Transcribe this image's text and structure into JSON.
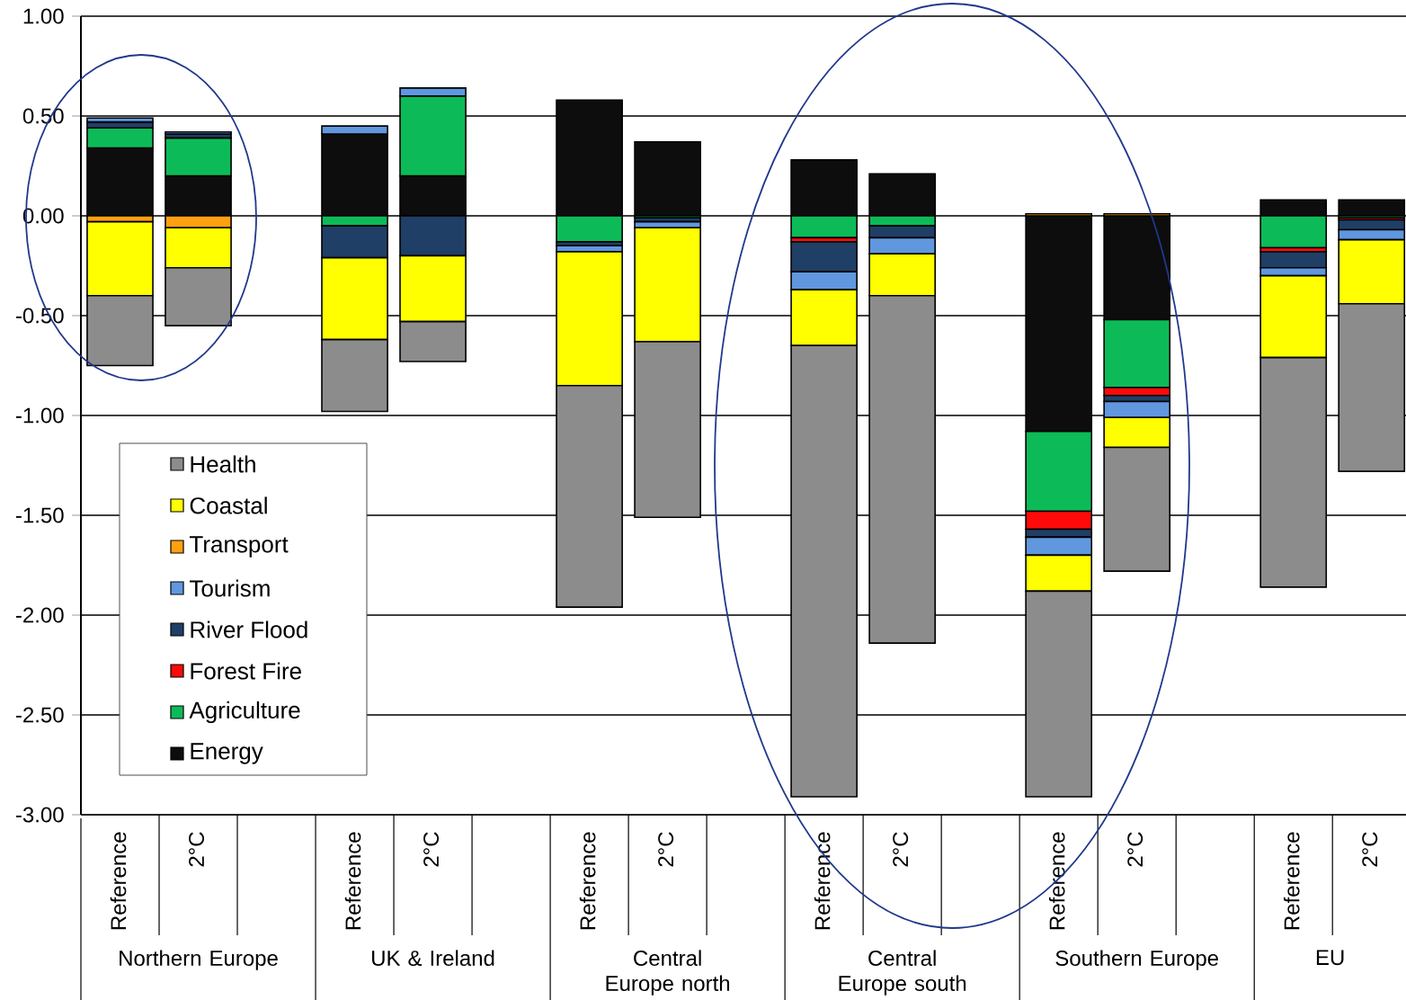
{
  "chart_data": {
    "type": "bar",
    "stacked": true,
    "categories": [
      "Reference",
      "2°C",
      null,
      "Reference",
      "2°C",
      null,
      "Reference",
      "2°C",
      null,
      "Reference",
      "2°C",
      null,
      "Reference",
      "2°C",
      null,
      "Reference",
      "2°C"
    ],
    "series": [
      {
        "name": "Energy",
        "color": "#0d0d0d",
        "values": [
          0.34,
          0.2,
          null,
          0.41,
          0.2,
          null,
          0.58,
          0.37,
          null,
          0.28,
          0.21,
          null,
          -1.08,
          -0.52,
          null,
          0.08,
          0.08
        ]
      },
      {
        "name": "Agriculture",
        "color": "#0cbb58",
        "values": [
          0.1,
          0.19,
          null,
          -0.05,
          0.4,
          null,
          -0.13,
          -0.01,
          null,
          -0.11,
          -0.05,
          null,
          -0.4,
          -0.34,
          null,
          -0.16,
          -0.01
        ]
      },
      {
        "name": "Forest Fire",
        "color": "#ff0a0a",
        "values": [
          null,
          null,
          null,
          null,
          null,
          null,
          null,
          null,
          null,
          -0.02,
          null,
          null,
          -0.09,
          -0.04,
          null,
          -0.02,
          -0.01
        ]
      },
      {
        "name": "River Flood",
        "color": "#203f66",
        "values": [
          0.03,
          0.02,
          null,
          -0.16,
          -0.2,
          null,
          -0.02,
          -0.02,
          null,
          -0.15,
          -0.06,
          null,
          -0.04,
          -0.03,
          null,
          -0.08,
          -0.05
        ]
      },
      {
        "name": "Tourism",
        "color": "#6097de",
        "values": [
          0.02,
          0.01,
          null,
          0.04,
          0.04,
          null,
          -0.03,
          -0.03,
          null,
          -0.09,
          -0.08,
          null,
          -0.09,
          -0.08,
          null,
          -0.04,
          -0.05
        ]
      },
      {
        "name": "Transport",
        "color": "#ffa010",
        "values": [
          -0.03,
          -0.06,
          null,
          null,
          null,
          null,
          null,
          null,
          null,
          null,
          null,
          null,
          0.01,
          0.01,
          null,
          null,
          null
        ]
      },
      {
        "name": "Coastal",
        "color": "#ffff00",
        "values": [
          -0.37,
          -0.2,
          null,
          -0.41,
          -0.33,
          null,
          -0.67,
          -0.57,
          null,
          -0.28,
          -0.21,
          null,
          -0.18,
          -0.15,
          null,
          -0.41,
          -0.32
        ]
      },
      {
        "name": "Health",
        "color": "#8c8c8c",
        "values": [
          -0.35,
          -0.29,
          null,
          -0.36,
          -0.2,
          null,
          -1.11,
          -0.88,
          null,
          -2.26,
          -1.74,
          null,
          -1.03,
          -0.62,
          null,
          -1.15,
          -0.84
        ]
      }
    ],
    "ylim": [
      -3,
      1
    ],
    "yticks": [
      {
        "value": -3,
        "label": "-3.00"
      },
      {
        "value": -2.5,
        "label": "-2.50"
      },
      {
        "value": -2,
        "label": "-2.00"
      },
      {
        "value": -1.5,
        "label": "-1.50"
      },
      {
        "value": -1,
        "label": "-1.00"
      },
      {
        "value": -0.5,
        "label": "-0.50"
      },
      {
        "value": 0,
        "label": "0.00"
      },
      {
        "value": 0.5,
        "label": "0.50"
      },
      {
        "value": 1,
        "label": "1.00"
      }
    ],
    "grid": "y",
    "legend": "bottom left",
    "annotations": [
      "Northern Europe",
      "UK & Ireland",
      "Central Europe north",
      "Central Europe south",
      "Southern Europe",
      "EU"
    ]
  }
}
